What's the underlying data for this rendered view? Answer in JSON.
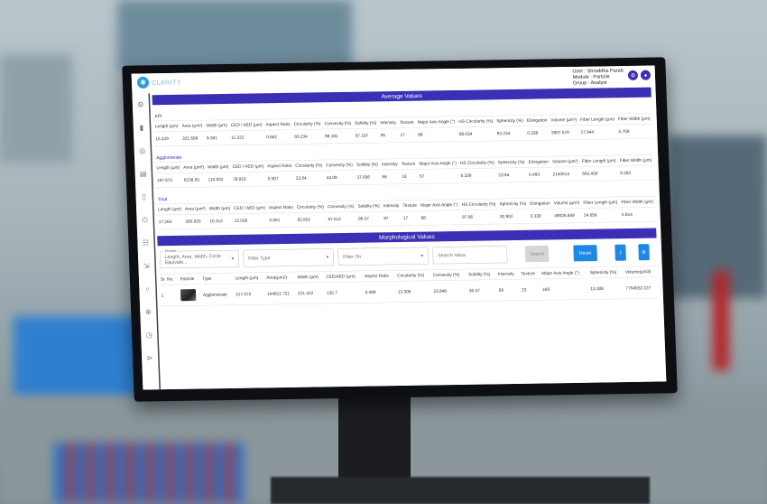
{
  "app": {
    "brand": "CLARITY",
    "user": "User : Shraddha Parab",
    "module": "Module : Particle",
    "group": "Group : Analyst"
  },
  "average": {
    "title": "Average Values",
    "columns": [
      "Length (µm)",
      "Area (µm²)",
      "Width (µm)",
      "CED / AED (µm)",
      "Aspect Ratio",
      "Circularity (%)",
      "Convexity (%)",
      "Solidity (%)",
      "Intensity",
      "Texture",
      "Major Axis Angle (°)",
      "HS Circularity (%)",
      "Sphericity (%)",
      "Elongation",
      "Volume (µm³)",
      "Fiber Length (µm)",
      "Fiber Width (µm)"
    ],
    "groups": [
      {
        "label": "API",
        "values": [
          "15.329",
          "321.608",
          "9.361",
          "11.322",
          "0.662",
          "93.234",
          "98.181",
          "97.197",
          "95",
          "17",
          "88",
          "88.034",
          "93.234",
          "0.338",
          "2607.579",
          "17.944",
          "5.759"
        ]
      },
      {
        "label": "Agglomerate",
        "values": [
          "197.672",
          "6238.93",
          "110.932",
          "78.919",
          "0.507",
          "23.64",
          "44.09",
          "37.606",
          "66",
          "18",
          "57",
          "6.339",
          "23.64",
          "0.493",
          "2140613",
          "663.439",
          "8.282"
        ]
      },
      {
        "label": "Total",
        "values": [
          "17.264",
          "360.925",
          "10.312",
          "12.036",
          "0.661",
          "92.802",
          "97.612",
          "96.57",
          "97",
          "17",
          "88",
          "87.96",
          "92.802",
          "0.339",
          "49026.849",
          "24.658",
          "5.814"
        ]
      }
    ]
  },
  "morph": {
    "title": "Morphological Values",
    "filters": {
      "texture_label": "Texture",
      "texture_value": "Length, Area, Width, Circle Equivale...",
      "filter_type": "Filter Type",
      "filter_on": "Filter On",
      "search_placeholder": "Search Value",
      "search": "Search",
      "reset": "Reset"
    },
    "columns": [
      "Sr. No.",
      "Particle",
      "Type",
      "Length (µm)",
      "Area(µm2)",
      "Width (µm)",
      "CED/AED (µm)",
      "Aspect Ratio",
      "Circularity (%)",
      "Convexity (%)",
      "Solidity (%)",
      "Intensity",
      "Texture",
      "Major Axis Angle (°)",
      "Sphericity (%)",
      "Volume(µm3)"
    ],
    "rows": [
      [
        "1",
        "",
        "Agglomerate",
        "317.072",
        "144612.721",
        "221.422",
        "135.7",
        "0.499",
        "13.308",
        "23.848",
        "36.47",
        "59",
        "23",
        "169",
        "13.308",
        "7764552.227"
      ]
    ]
  },
  "colors": {
    "accent": "#3b2fb5",
    "button": "#1e88e5"
  }
}
